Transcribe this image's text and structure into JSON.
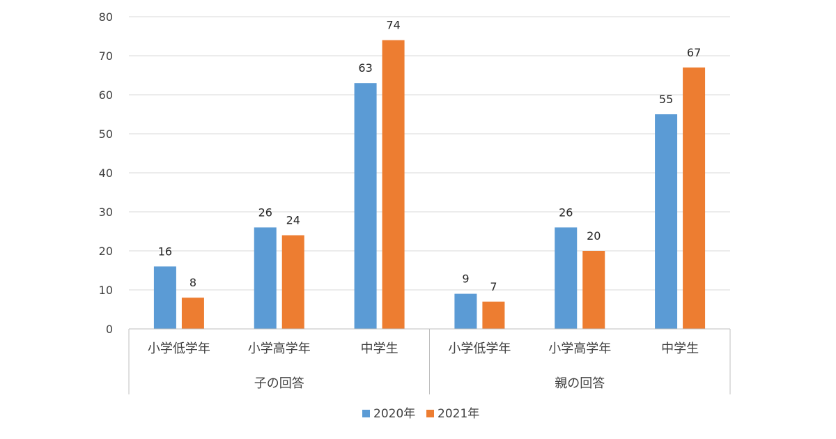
{
  "chart_data": {
    "type": "bar",
    "groups": [
      {
        "label": "子の回答",
        "categories": [
          "小学低学年",
          "小学高学年",
          "中学生"
        ]
      },
      {
        "label": "親の回答",
        "categories": [
          "小学低学年",
          "小学高学年",
          "中学生"
        ]
      }
    ],
    "series": [
      {
        "name": "2020年",
        "color": "#5B9BD5",
        "values": [
          16,
          26,
          63,
          9,
          26,
          55
        ]
      },
      {
        "name": "2021年",
        "color": "#ED7D31",
        "values": [
          8,
          24,
          74,
          7,
          20,
          67
        ]
      }
    ],
    "ylim": [
      0,
      80
    ],
    "yticks": [
      0,
      10,
      20,
      30,
      40,
      50,
      60,
      70,
      80
    ],
    "grid": true,
    "legend_position": "bottom"
  }
}
